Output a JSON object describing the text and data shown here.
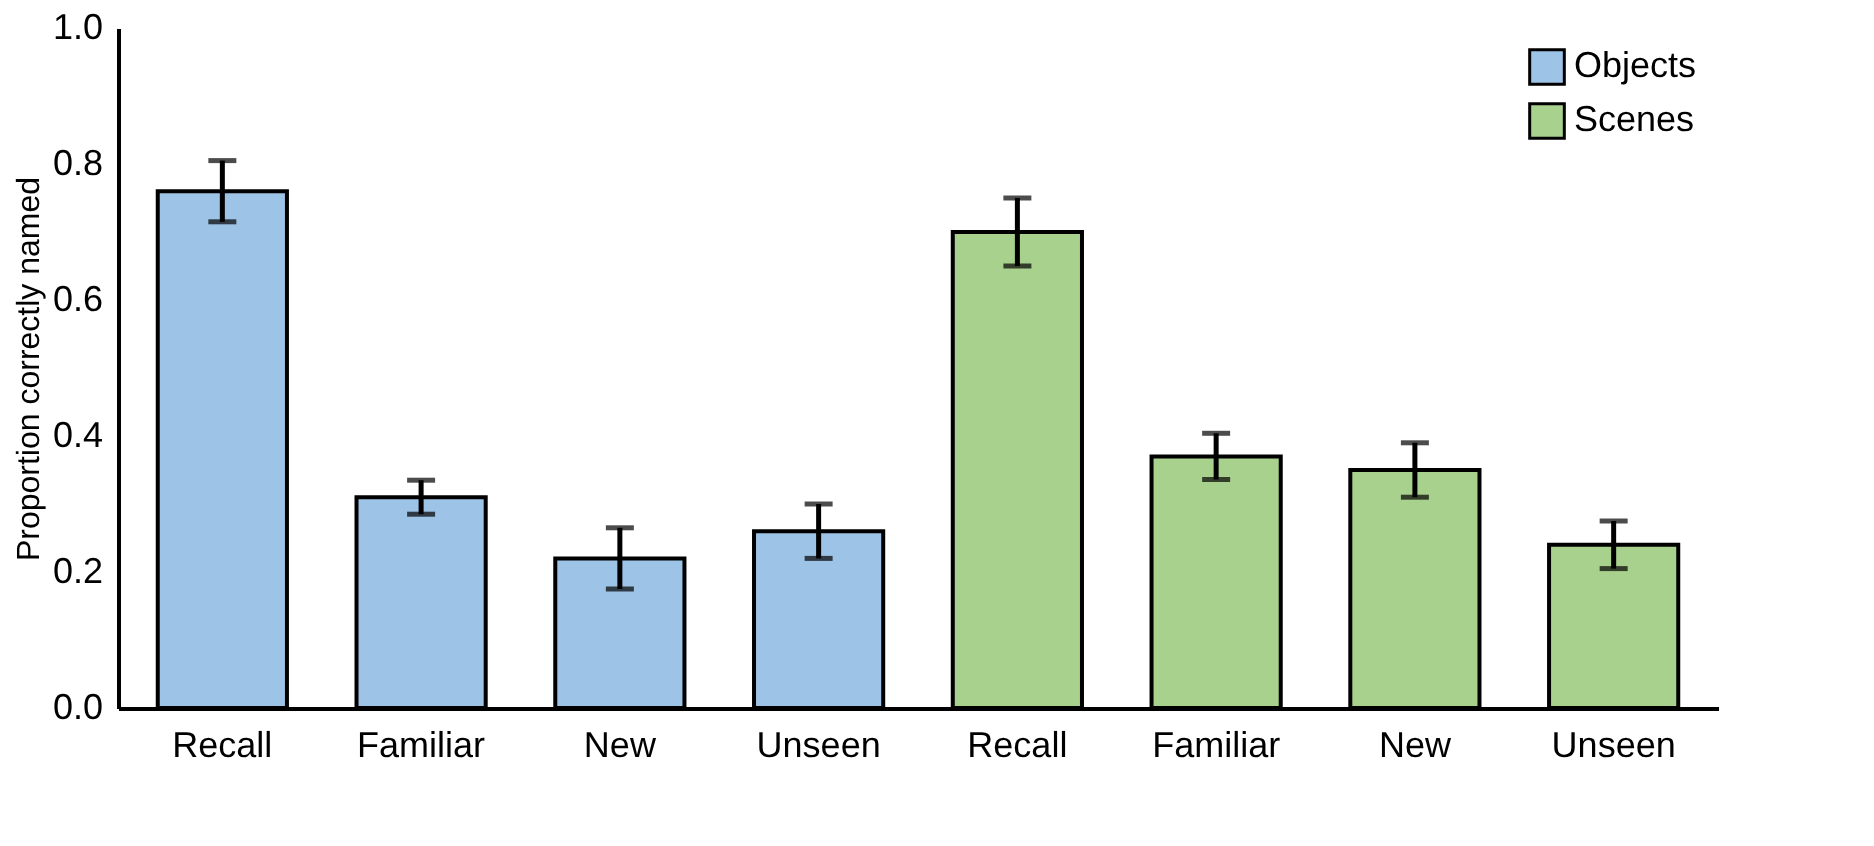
{
  "chart_data": {
    "type": "bar",
    "ylabel": "Proportion correctly named",
    "categories": [
      "Recall",
      "Familiar",
      "New",
      "Unseen",
      "Recall",
      "Familiar",
      "New",
      "Unseen"
    ],
    "series": [
      {
        "name": "Objects",
        "color": "#9dc3e6",
        "values": [
          0.76,
          0.31,
          0.22,
          0.26,
          null,
          null,
          null,
          null
        ],
        "errors": [
          0.045,
          0.025,
          0.045,
          0.04,
          null,
          null,
          null,
          null
        ]
      },
      {
        "name": "Scenes",
        "color": "#a9d18e",
        "values": [
          null,
          null,
          null,
          null,
          0.7,
          0.37,
          0.35,
          0.24
        ],
        "errors": [
          null,
          null,
          null,
          null,
          0.05,
          0.034,
          0.04,
          0.035
        ]
      }
    ],
    "ylim": [
      0,
      1
    ],
    "yticks": [
      {
        "value": 0,
        "label": "0.0"
      },
      {
        "value": 0.2,
        "label": "0.2"
      },
      {
        "value": 0.4,
        "label": "0.4"
      },
      {
        "value": 0.6,
        "label": "0.6"
      },
      {
        "value": 0.8,
        "label": "0.8"
      },
      {
        "value": 1,
        "label": "1.0"
      }
    ],
    "grid": false,
    "legend": "top right"
  }
}
